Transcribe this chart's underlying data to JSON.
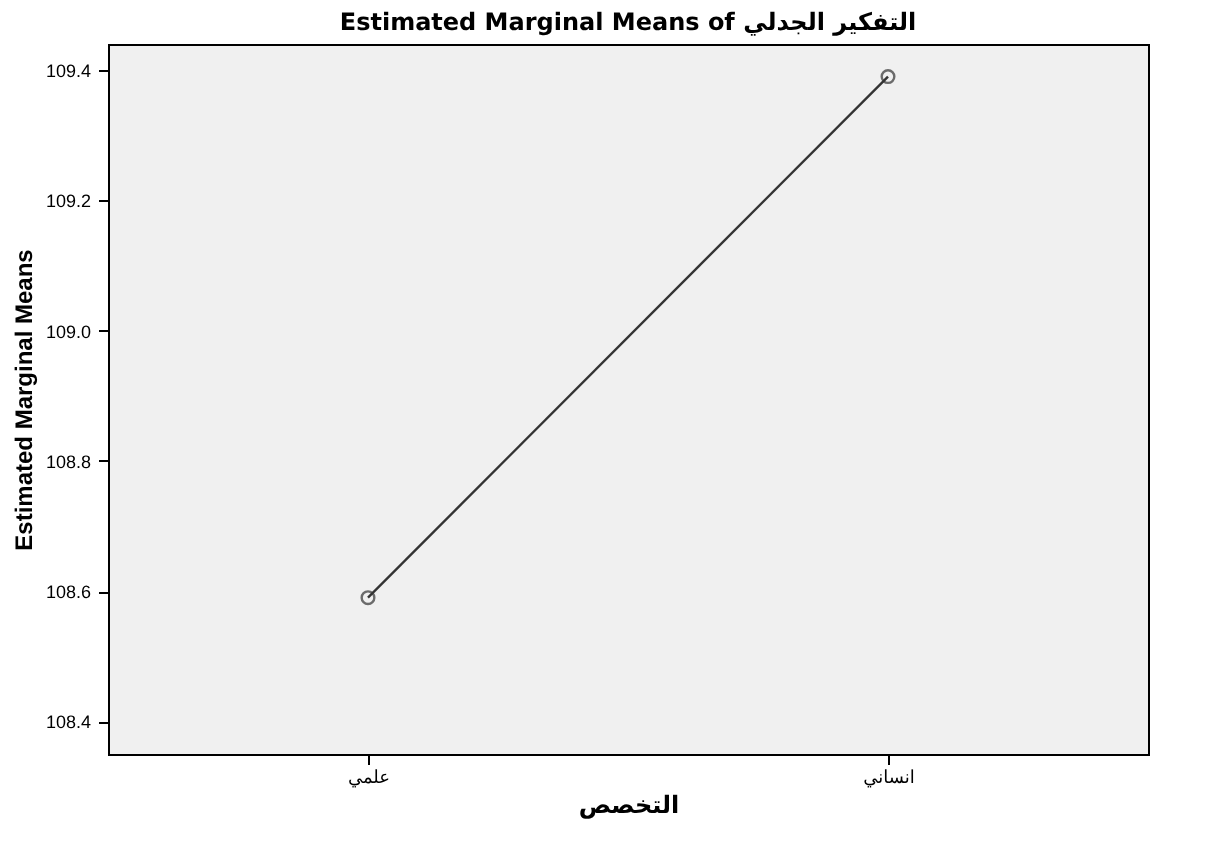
{
  "chart_data": {
    "type": "line",
    "title": "Estimated Marginal Means of التفكير الجدلي",
    "xlabel": "التخصص",
    "ylabel": "Estimated Marginal Means",
    "categories": [
      "علمي",
      "انساني"
    ],
    "series": [
      {
        "color": "#333333",
        "values": [
          108.59,
          109.39
        ]
      }
    ],
    "ylim": [
      108.35,
      109.44
    ],
    "yticks": [
      108.4,
      108.6,
      108.8,
      {
        "value": 109.0,
        "label": "109.0"
      },
      109.2,
      109.4
    ],
    "grid": false,
    "marker": "circle",
    "line_style": "solid"
  }
}
